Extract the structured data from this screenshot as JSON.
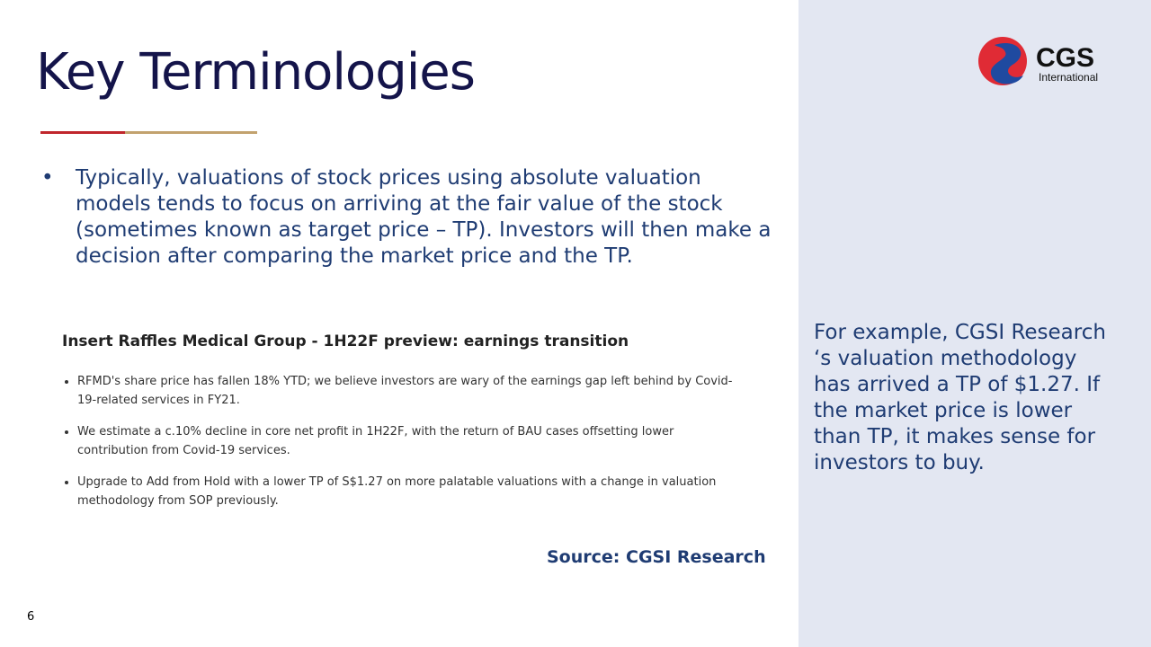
{
  "title": "Key Terminologies",
  "logo": {
    "name": "CGS",
    "subtitle": "International"
  },
  "bullet": "Typically, valuations of stock prices using absolute valuation models tends to focus on arriving at the fair value of the stock (sometimes known as target price – TP). Investors will then make a decision after comparing the market price and the TP.",
  "excerpt": {
    "heading": "Insert Raffles Medical Group - 1H22F preview: earnings transition",
    "items": [
      "RFMD's share price has fallen 18% YTD; we believe investors are wary of the earnings gap left behind by Covid-19-related services in FY21.",
      "We estimate a c.10% decline in core net profit in 1H22F, with the return of BAU cases offsetting lower contribution from Covid-19 services.",
      "Upgrade to Add from Hold with a lower TP of S$1.27 on more palatable valuations with a change in valuation methodology from SOP previously."
    ]
  },
  "source": "Source: CGSI Research",
  "side_note": "For example, CGSI Research ‘s valuation methodology has arrived a TP of $1.27. If the market price is lower than TP, it makes sense for investors to buy.",
  "page_number": "6"
}
